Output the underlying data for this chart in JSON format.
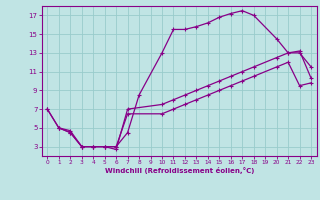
{
  "xlabel": "Windchill (Refroidissement éolien,°C)",
  "bg_color": "#c0e4e4",
  "line_color": "#880088",
  "grid_color": "#99cccc",
  "xlim": [
    -0.5,
    23.5
  ],
  "ylim": [
    2.0,
    18.0
  ],
  "xticks": [
    0,
    1,
    2,
    3,
    4,
    5,
    6,
    7,
    8,
    9,
    10,
    11,
    12,
    13,
    14,
    15,
    16,
    17,
    18,
    19,
    20,
    21,
    22,
    23
  ],
  "yticks": [
    3,
    5,
    7,
    9,
    11,
    13,
    15,
    17
  ],
  "line1_x": [
    0,
    1,
    2,
    3,
    4,
    5,
    6,
    7,
    8,
    10,
    11,
    12,
    13,
    14,
    15,
    16,
    17,
    18,
    20,
    21,
    22,
    23
  ],
  "line1_y": [
    7,
    5,
    4.5,
    3,
    3,
    3,
    3,
    4.5,
    8.5,
    13,
    15.5,
    15.5,
    15.8,
    16.2,
    16.8,
    17.2,
    17.5,
    17.0,
    14.5,
    13,
    13,
    11.5
  ],
  "line2_x": [
    0,
    1,
    2,
    3,
    4,
    5,
    6,
    7,
    10,
    11,
    12,
    13,
    14,
    15,
    16,
    17,
    18,
    20,
    21,
    22,
    23
  ],
  "line2_y": [
    7,
    5,
    4.7,
    3,
    3,
    3,
    2.7,
    7.0,
    7.5,
    8.0,
    8.5,
    9.0,
    9.5,
    10.0,
    10.5,
    11.0,
    11.5,
    12.5,
    13.0,
    13.2,
    10.3
  ],
  "line3_x": [
    1,
    2,
    3,
    4,
    5,
    6,
    7,
    10,
    11,
    12,
    13,
    14,
    15,
    16,
    17,
    18,
    20,
    21,
    22,
    23
  ],
  "line3_y": [
    5,
    4.5,
    3,
    3,
    3,
    3,
    6.5,
    6.5,
    7.0,
    7.5,
    8.0,
    8.5,
    9.0,
    9.5,
    10.0,
    10.5,
    11.5,
    12.0,
    9.5,
    9.8
  ]
}
